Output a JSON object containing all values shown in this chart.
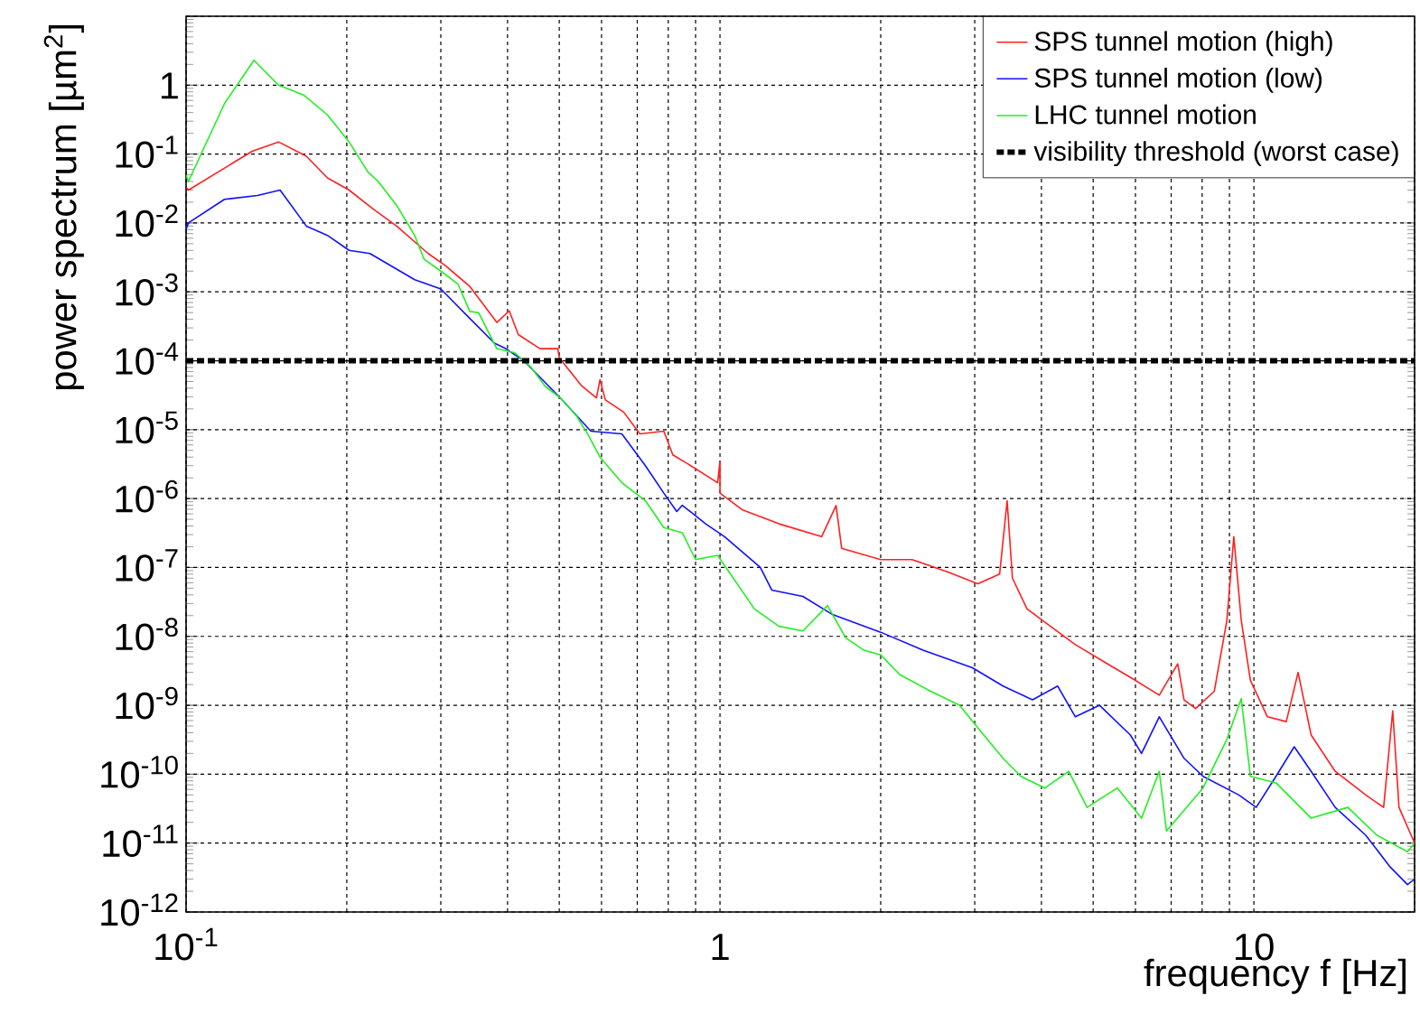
{
  "chart_data": {
    "type": "line",
    "xlabel": "frequency f [Hz]",
    "ylabel": "power spectrum [µm$^{2}$]",
    "log": "xy",
    "grid": true,
    "legend": "top right",
    "xlim": [
      0.1,
      20
    ],
    "ylim": [
      1e-12,
      10
    ],
    "xticks": [
      {
        "value": 0.1,
        "label": "10$^{-1}$"
      },
      {
        "value": 0.2,
        "label": null
      },
      {
        "value": 0.3,
        "label": null
      },
      {
        "value": 0.4,
        "label": null
      },
      {
        "value": 0.5,
        "label": null
      },
      {
        "value": 0.6,
        "label": null
      },
      {
        "value": 0.7,
        "label": null
      },
      {
        "value": 0.8,
        "label": null
      },
      {
        "value": 0.9,
        "label": null
      },
      1,
      {
        "value": 2,
        "label": null
      },
      {
        "value": 3,
        "label": null
      },
      {
        "value": 4,
        "label": null
      },
      {
        "value": 5,
        "label": null
      },
      {
        "value": 6,
        "label": null
      },
      {
        "value": 7,
        "label": null
      },
      {
        "value": 8,
        "label": null
      },
      {
        "value": 9,
        "label": null
      },
      10,
      {
        "value": 20,
        "label": null
      }
    ],
    "yticks": [
      {
        "value": 1e-12,
        "label": "10$^{-12}$"
      },
      {
        "value": 1e-11,
        "label": "10$^{-11}$"
      },
      {
        "value": 1e-10,
        "label": "10$^{-10}$"
      },
      {
        "value": 1e-09,
        "label": "10$^{-9}$"
      },
      {
        "value": 1e-08,
        "label": "10$^{-8}$"
      },
      {
        "value": 1e-07,
        "label": "10$^{-7}$"
      },
      {
        "value": 1e-06,
        "label": "10$^{-6}$"
      },
      {
        "value": 1e-05,
        "label": "10$^{-5}$"
      },
      {
        "value": 0.0001,
        "label": "10$^{-4}$"
      },
      {
        "value": 0.001,
        "label": "10$^{-3}$"
      },
      {
        "value": 0.01,
        "label": "10$^{-2}$"
      },
      {
        "value": 0.1,
        "label": "10$^{-1}$"
      },
      1,
      {
        "value": 10,
        "label": null
      }
    ],
    "series": [
      {
        "name": "SPS tunnel motion (high)",
        "color": "#ff2020",
        "x": [
          0.1,
          0.101,
          0.133,
          0.149,
          0.168,
          0.184,
          0.202,
          0.224,
          0.248,
          0.284,
          0.306,
          0.34,
          0.382,
          0.403,
          0.419,
          0.46,
          0.497,
          0.5,
          0.551,
          0.587,
          0.596,
          0.61,
          0.66,
          0.708,
          0.785,
          0.816,
          0.87,
          0.99,
          1.0,
          1.0,
          1.1,
          1.29,
          1.55,
          1.65,
          1.69,
          2.0,
          2.29,
          2.68,
          3.04,
          3.34,
          3.45,
          3.53,
          3.76,
          4.16,
          4.63,
          5.26,
          6.0,
          6.65,
          7.2,
          7.4,
          7.78,
          8.43,
          8.9,
          9.17,
          9.47,
          9.85,
          10.6,
          11.5,
          12.1,
          12.8,
          14.2,
          16.2,
          17.5,
          18.2,
          18.7,
          20
        ],
        "values": [
          0.033,
          0.03,
          0.11,
          0.15,
          0.093,
          0.045,
          0.03,
          0.016,
          0.009,
          0.0036,
          0.0024,
          0.0012,
          0.00036,
          0.00053,
          0.00024,
          0.00015,
          0.00015,
          0.00011,
          4.3e-05,
          2.9e-05,
          5.3e-05,
          2.7e-05,
          1.8e-05,
          8.7e-06,
          9.5e-06,
          4.3e-06,
          3.2e-06,
          1.7e-06,
          3.5e-06,
          1.2e-06,
          6.9e-07,
          4.3e-07,
          2.8e-07,
          7.9e-07,
          1.9e-07,
          1.3e-07,
          1.3e-07,
          8.5e-08,
          5.8e-08,
          8e-08,
          9.3e-07,
          7e-08,
          2.5e-08,
          1.4e-08,
          7.6e-09,
          4.2e-09,
          2.3e-09,
          1.4e-09,
          4e-09,
          1.2e-09,
          9e-10,
          1.6e-09,
          1.7e-08,
          2.8e-07,
          1.7e-08,
          2.3e-09,
          6.8e-10,
          5.8e-10,
          3e-09,
          3.7e-10,
          1.1e-10,
          5e-11,
          3.3e-11,
          8.3e-10,
          3.3e-11,
          1e-11
        ]
      },
      {
        "name": "SPS tunnel motion (low)",
        "color": "#1010ff",
        "x": [
          0.1,
          0.101,
          0.118,
          0.136,
          0.15,
          0.168,
          0.184,
          0.202,
          0.221,
          0.268,
          0.3,
          0.337,
          0.378,
          0.397,
          0.429,
          0.502,
          0.573,
          0.655,
          0.725,
          0.785,
          0.83,
          0.85,
          0.94,
          1.02,
          1.19,
          1.25,
          1.43,
          1.62,
          2.0,
          2.4,
          2.97,
          3.39,
          3.85,
          4.29,
          4.63,
          5.14,
          5.87,
          6.16,
          6.65,
          7.4,
          8.03,
          9.37,
          10.1,
          11.0,
          11.9,
          12.8,
          14.2,
          16.2,
          18.0,
          19.4,
          20
        ],
        "values": [
          0.008,
          0.01,
          0.022,
          0.025,
          0.03,
          0.009,
          0.0066,
          0.004,
          0.0036,
          0.0015,
          0.0011,
          0.00044,
          0.00018,
          0.00015,
          0.0001,
          2.9e-05,
          9.5e-06,
          8.7e-06,
          3e-06,
          1.2e-06,
          6.5e-07,
          8e-07,
          4.3e-07,
          2.8e-07,
          1e-07,
          4.7e-08,
          3.8e-08,
          2.1e-08,
          1.15e-08,
          6.3e-09,
          3.5e-09,
          1.9e-09,
          1.2e-09,
          1.9e-09,
          6.8e-10,
          1e-09,
          3.7e-10,
          2e-10,
          6.8e-10,
          1.7e-10,
          9.3e-11,
          5e-11,
          3.3e-11,
          9.3e-11,
          2.5e-10,
          1.1e-10,
          3.3e-11,
          1.3e-11,
          4.5e-12,
          2.5e-12,
          3e-12
        ]
      },
      {
        "name": "LHC tunnel motion",
        "color": "#22ee22",
        "x": [
          0.1,
          0.101,
          0.118,
          0.134,
          0.149,
          0.166,
          0.184,
          0.202,
          0.219,
          0.229,
          0.248,
          0.268,
          0.279,
          0.3,
          0.323,
          0.34,
          0.353,
          0.382,
          0.413,
          0.443,
          0.47,
          0.502,
          0.538,
          0.565,
          0.596,
          0.655,
          0.725,
          0.785,
          0.85,
          0.9,
          0.99,
          1.16,
          1.29,
          1.43,
          1.59,
          1.72,
          1.86,
          2.0,
          2.17,
          2.48,
          2.81,
          3.04,
          3.39,
          3.66,
          4.06,
          4.5,
          4.87,
          5.55,
          6.16,
          6.65,
          6.86,
          8.03,
          8.9,
          9.47,
          9.85,
          11.0,
          12.8,
          15.0,
          17.0,
          19.4,
          20
        ],
        "values": [
          0.05,
          0.04,
          0.54,
          2.3,
          1,
          0.72,
          0.37,
          0.15,
          0.055,
          0.04,
          0.018,
          0.0066,
          0.003,
          0.002,
          0.0013,
          0.00052,
          0.0005,
          0.00015,
          0.00013,
          8e-05,
          4.3e-05,
          2.9e-05,
          1.6e-05,
          8.7e-06,
          4e-06,
          1.7e-06,
          9.3e-07,
          3.8e-07,
          3.2e-07,
          1.3e-07,
          1.5e-07,
          2.5e-08,
          1.4e-08,
          1.2e-08,
          2.8e-08,
          9.5e-09,
          6.3e-09,
          5.4e-09,
          2.8e-09,
          1.6e-09,
          1e-09,
          4.7e-10,
          1.7e-10,
          9.3e-11,
          6.3e-11,
          1.1e-10,
          3.3e-11,
          6.3e-11,
          2.3e-11,
          1.1e-10,
          1.5e-11,
          6.3e-11,
          3.2e-10,
          1.25e-09,
          9.3e-11,
          7.5e-11,
          2.3e-11,
          3.3e-11,
          1.3e-11,
          7.5e-12,
          1e-11
        ]
      }
    ],
    "ref_lines": [
      {
        "axis": "y",
        "value": 0.0001,
        "label": "visibility threshold (worst case)",
        "color": "#000000",
        "line_style": "dotted"
      }
    ]
  }
}
